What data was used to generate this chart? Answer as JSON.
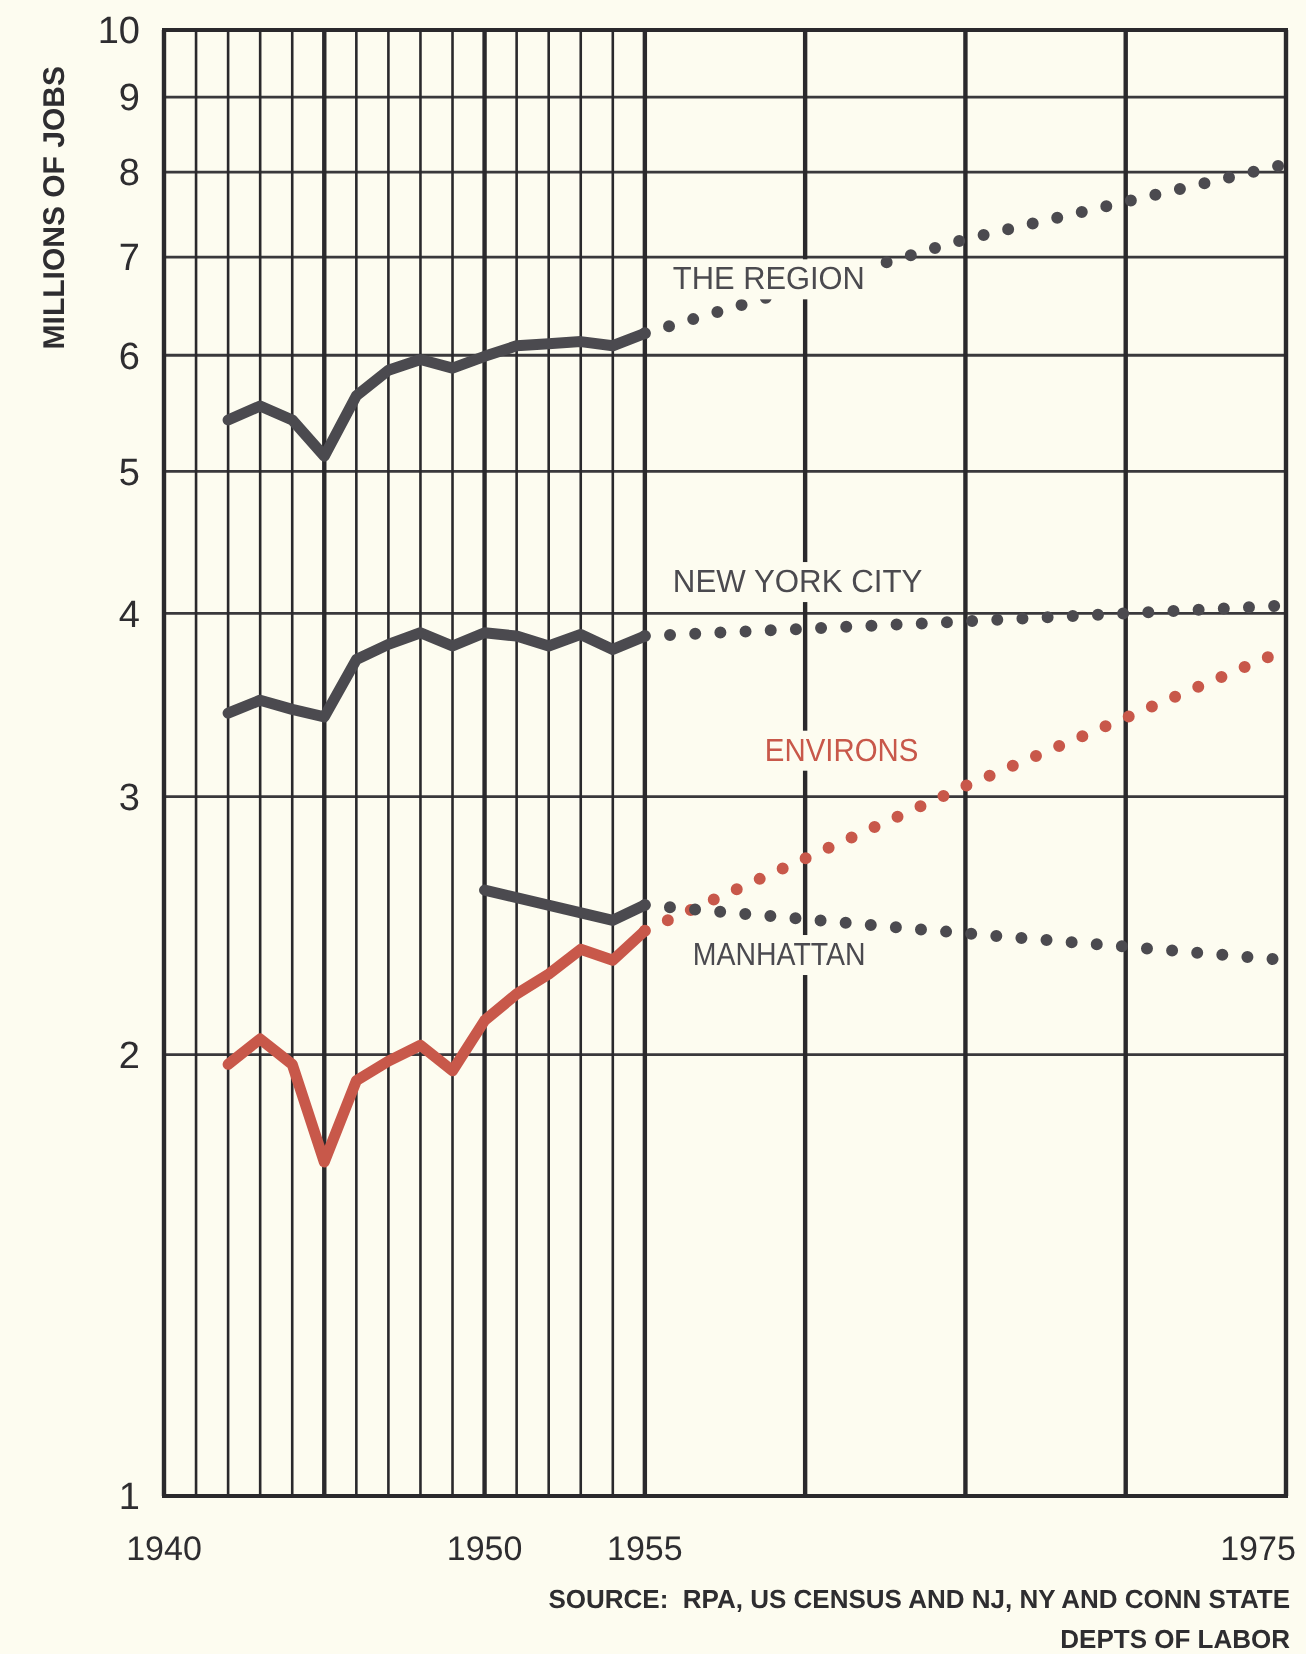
{
  "chart_data": {
    "type": "line",
    "ylabel": "MILLIONS OF JOBS",
    "log": true,
    "grid": true,
    "line_style": "solid",
    "xlim": [
      1940,
      1975
    ],
    "ylim": [
      1,
      10
    ],
    "xticks": [
      1940,
      {
        "value": 1941,
        "label": null
      },
      {
        "value": 1942,
        "label": null
      },
      {
        "value": 1943,
        "label": null
      },
      {
        "value": 1944,
        "label": null
      },
      {
        "value": 1945,
        "label": null
      },
      {
        "value": 1946,
        "label": null
      },
      {
        "value": 1947,
        "label": null
      },
      {
        "value": 1948,
        "label": null
      },
      {
        "value": 1949,
        "label": null
      },
      1950,
      {
        "value": 1951,
        "label": null
      },
      {
        "value": 1952,
        "label": null
      },
      {
        "value": 1953,
        "label": null
      },
      {
        "value": 1954,
        "label": null
      },
      1955,
      {
        "value": 1960,
        "label": null
      },
      {
        "value": 1965,
        "label": null
      },
      {
        "value": 1970,
        "label": null
      },
      1975
    ],
    "yticks": [
      1,
      2,
      3,
      4,
      5,
      6,
      7,
      8,
      9,
      10
    ],
    "series": [
      {
        "color": "#4b4a4f",
        "x": [
          1942,
          1943,
          1944,
          1945,
          1946,
          1947,
          1948,
          1949,
          1950,
          1951,
          1952,
          1953,
          1954,
          1955
        ],
        "values": [
          5.42,
          5.54,
          5.42,
          5.12,
          5.63,
          5.86,
          5.96,
          5.88,
          5.99,
          6.09,
          6.11,
          6.13,
          6.09,
          6.21
        ]
      },
      {
        "name": "THE REGION",
        "color": "#4b4a4f",
        "line_style": "dotted",
        "x": [
          1955,
          1965,
          1975
        ],
        "values": [
          6.21,
          7.2,
          8.1
        ]
      },
      {
        "color": "#4b4a4f",
        "x": [
          1942,
          1943,
          1944,
          1945,
          1946,
          1947,
          1948,
          1949,
          1950,
          1951,
          1952,
          1953,
          1954,
          1955
        ],
        "values": [
          3.42,
          3.49,
          3.44,
          3.4,
          3.72,
          3.81,
          3.88,
          3.8,
          3.88,
          3.86,
          3.8,
          3.87,
          3.78,
          3.86
        ]
      },
      {
        "name": "NEW YORK CITY",
        "color": "#4b4a4f",
        "line_style": "dotted",
        "x": [
          1955,
          1965,
          1975
        ],
        "values": [
          3.86,
          3.95,
          4.05
        ]
      },
      {
        "color": "#c8584a",
        "x": [
          1942,
          1943,
          1944,
          1945,
          1946,
          1947,
          1948,
          1949,
          1950,
          1951,
          1952,
          1953,
          1954,
          1955
        ],
        "values": [
          1.97,
          2.05,
          1.97,
          1.69,
          1.92,
          1.98,
          2.03,
          1.95,
          2.11,
          2.2,
          2.27,
          2.36,
          2.32,
          2.43
        ]
      },
      {
        "name": "ENVIRONS",
        "color": "#c8584a",
        "line_style": "dotted",
        "x": [
          1955,
          1965,
          1975
        ],
        "values": [
          2.43,
          3.05,
          3.78
        ]
      },
      {
        "color": "#4b4a4f",
        "x": [
          1950,
          1954,
          1955
        ],
        "values": [
          2.59,
          2.47,
          2.53
        ]
      },
      {
        "name": "MANHATTAN",
        "color": "#4b4a4f",
        "line_style": "dotted",
        "x": [
          1955,
          1965,
          1970,
          1975
        ],
        "values": [
          2.53,
          2.42,
          2.37,
          2.32
        ]
      }
    ],
    "annotations": [
      "SOURCE:  RPA, US CENSUS AND NJ, NY AND CONN STATE DEPTS OF LABOR"
    ]
  }
}
